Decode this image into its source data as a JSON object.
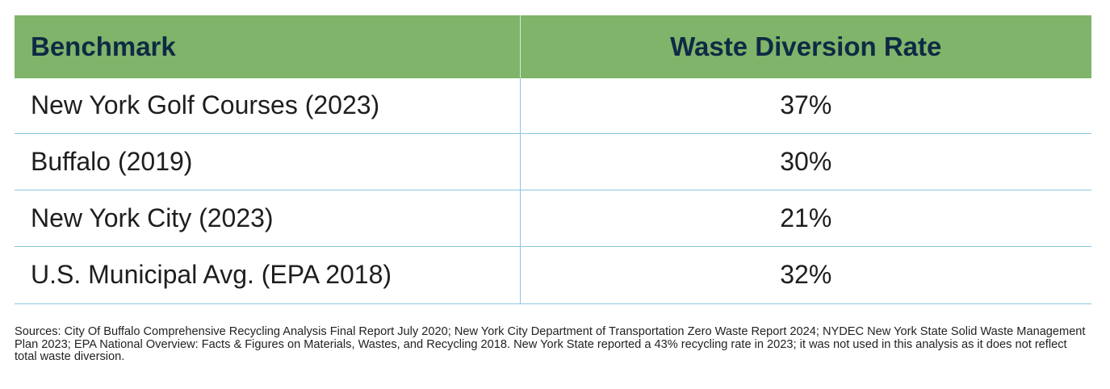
{
  "table": {
    "headers": [
      "Benchmark",
      "Waste Diversion Rate"
    ],
    "rows": [
      {
        "benchmark": "New York Golf Courses (2023)",
        "rate": "37%"
      },
      {
        "benchmark": "Buffalo (2019)",
        "rate": "30%"
      },
      {
        "benchmark": "New York City (2023)",
        "rate": "21%"
      },
      {
        "benchmark": "U.S. Municipal Avg. (EPA 2018)",
        "rate": "32%"
      }
    ]
  },
  "sources": "Sources: City Of Buffalo Comprehensive Recycling Analysis Final Report July 2020; New York City Department of Transportation Zero Waste Report 2024; NYDEC New York State Solid Waste Management Plan 2023; EPA National Overview: Facts & Figures on Materials, Wastes, and Recycling 2018. New York State reported a 43% recycling rate in 2023; it was not used in this analysis as it does not reflect total waste diversion.",
  "colors": {
    "header_bg": "#7fb46a",
    "header_text": "#0f2a44",
    "row_divider": "#8cc4de"
  }
}
